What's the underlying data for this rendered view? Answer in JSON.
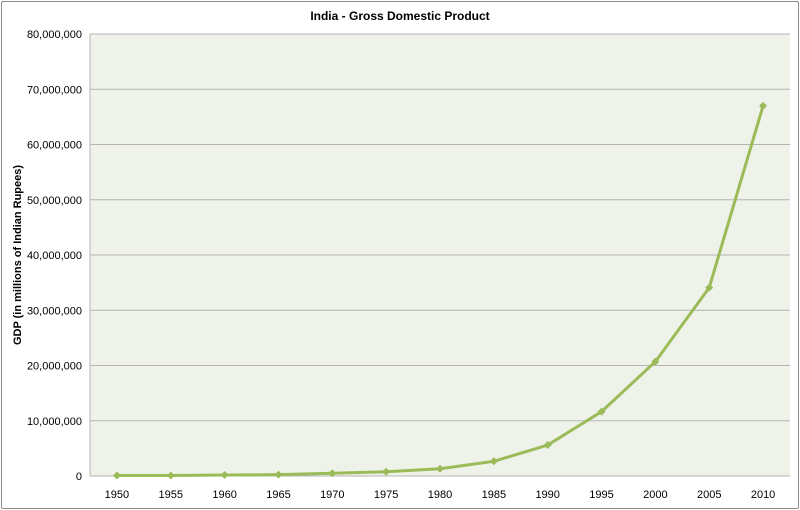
{
  "chart_data": {
    "type": "line",
    "title": "India - Gross Domestic Product",
    "xlabel": "",
    "ylabel": "GDP  (in millions of Indian Rupees)",
    "categories": [
      "1950",
      "1955",
      "1960",
      "1965",
      "1970",
      "1975",
      "1980",
      "1985",
      "1990",
      "1995",
      "2000",
      "2005",
      "2010"
    ],
    "series": [
      {
        "values": [
          90000,
          100000,
          180000,
          240000,
          490000,
          780000,
          1320000,
          2660000,
          5600000,
          11650000,
          20700000,
          34100000,
          67000000
        ]
      }
    ],
    "ylim": [
      0,
      80000000
    ],
    "yticks": [
      0,
      10000000,
      20000000,
      30000000,
      40000000,
      50000000,
      60000000,
      70000000,
      80000000
    ],
    "ytick_labels": [
      "0",
      "10,000,000",
      "20,000,000",
      "30,000,000",
      "40,000,000",
      "50,000,000",
      "60,000,000",
      "70,000,000",
      "80,000,000"
    ],
    "grid": true,
    "legend": "none",
    "marker": "diamond",
    "colors": {
      "line": "#9bbb59",
      "plot_background": "#eff2e9",
      "grid": "#b4b4b4"
    }
  }
}
